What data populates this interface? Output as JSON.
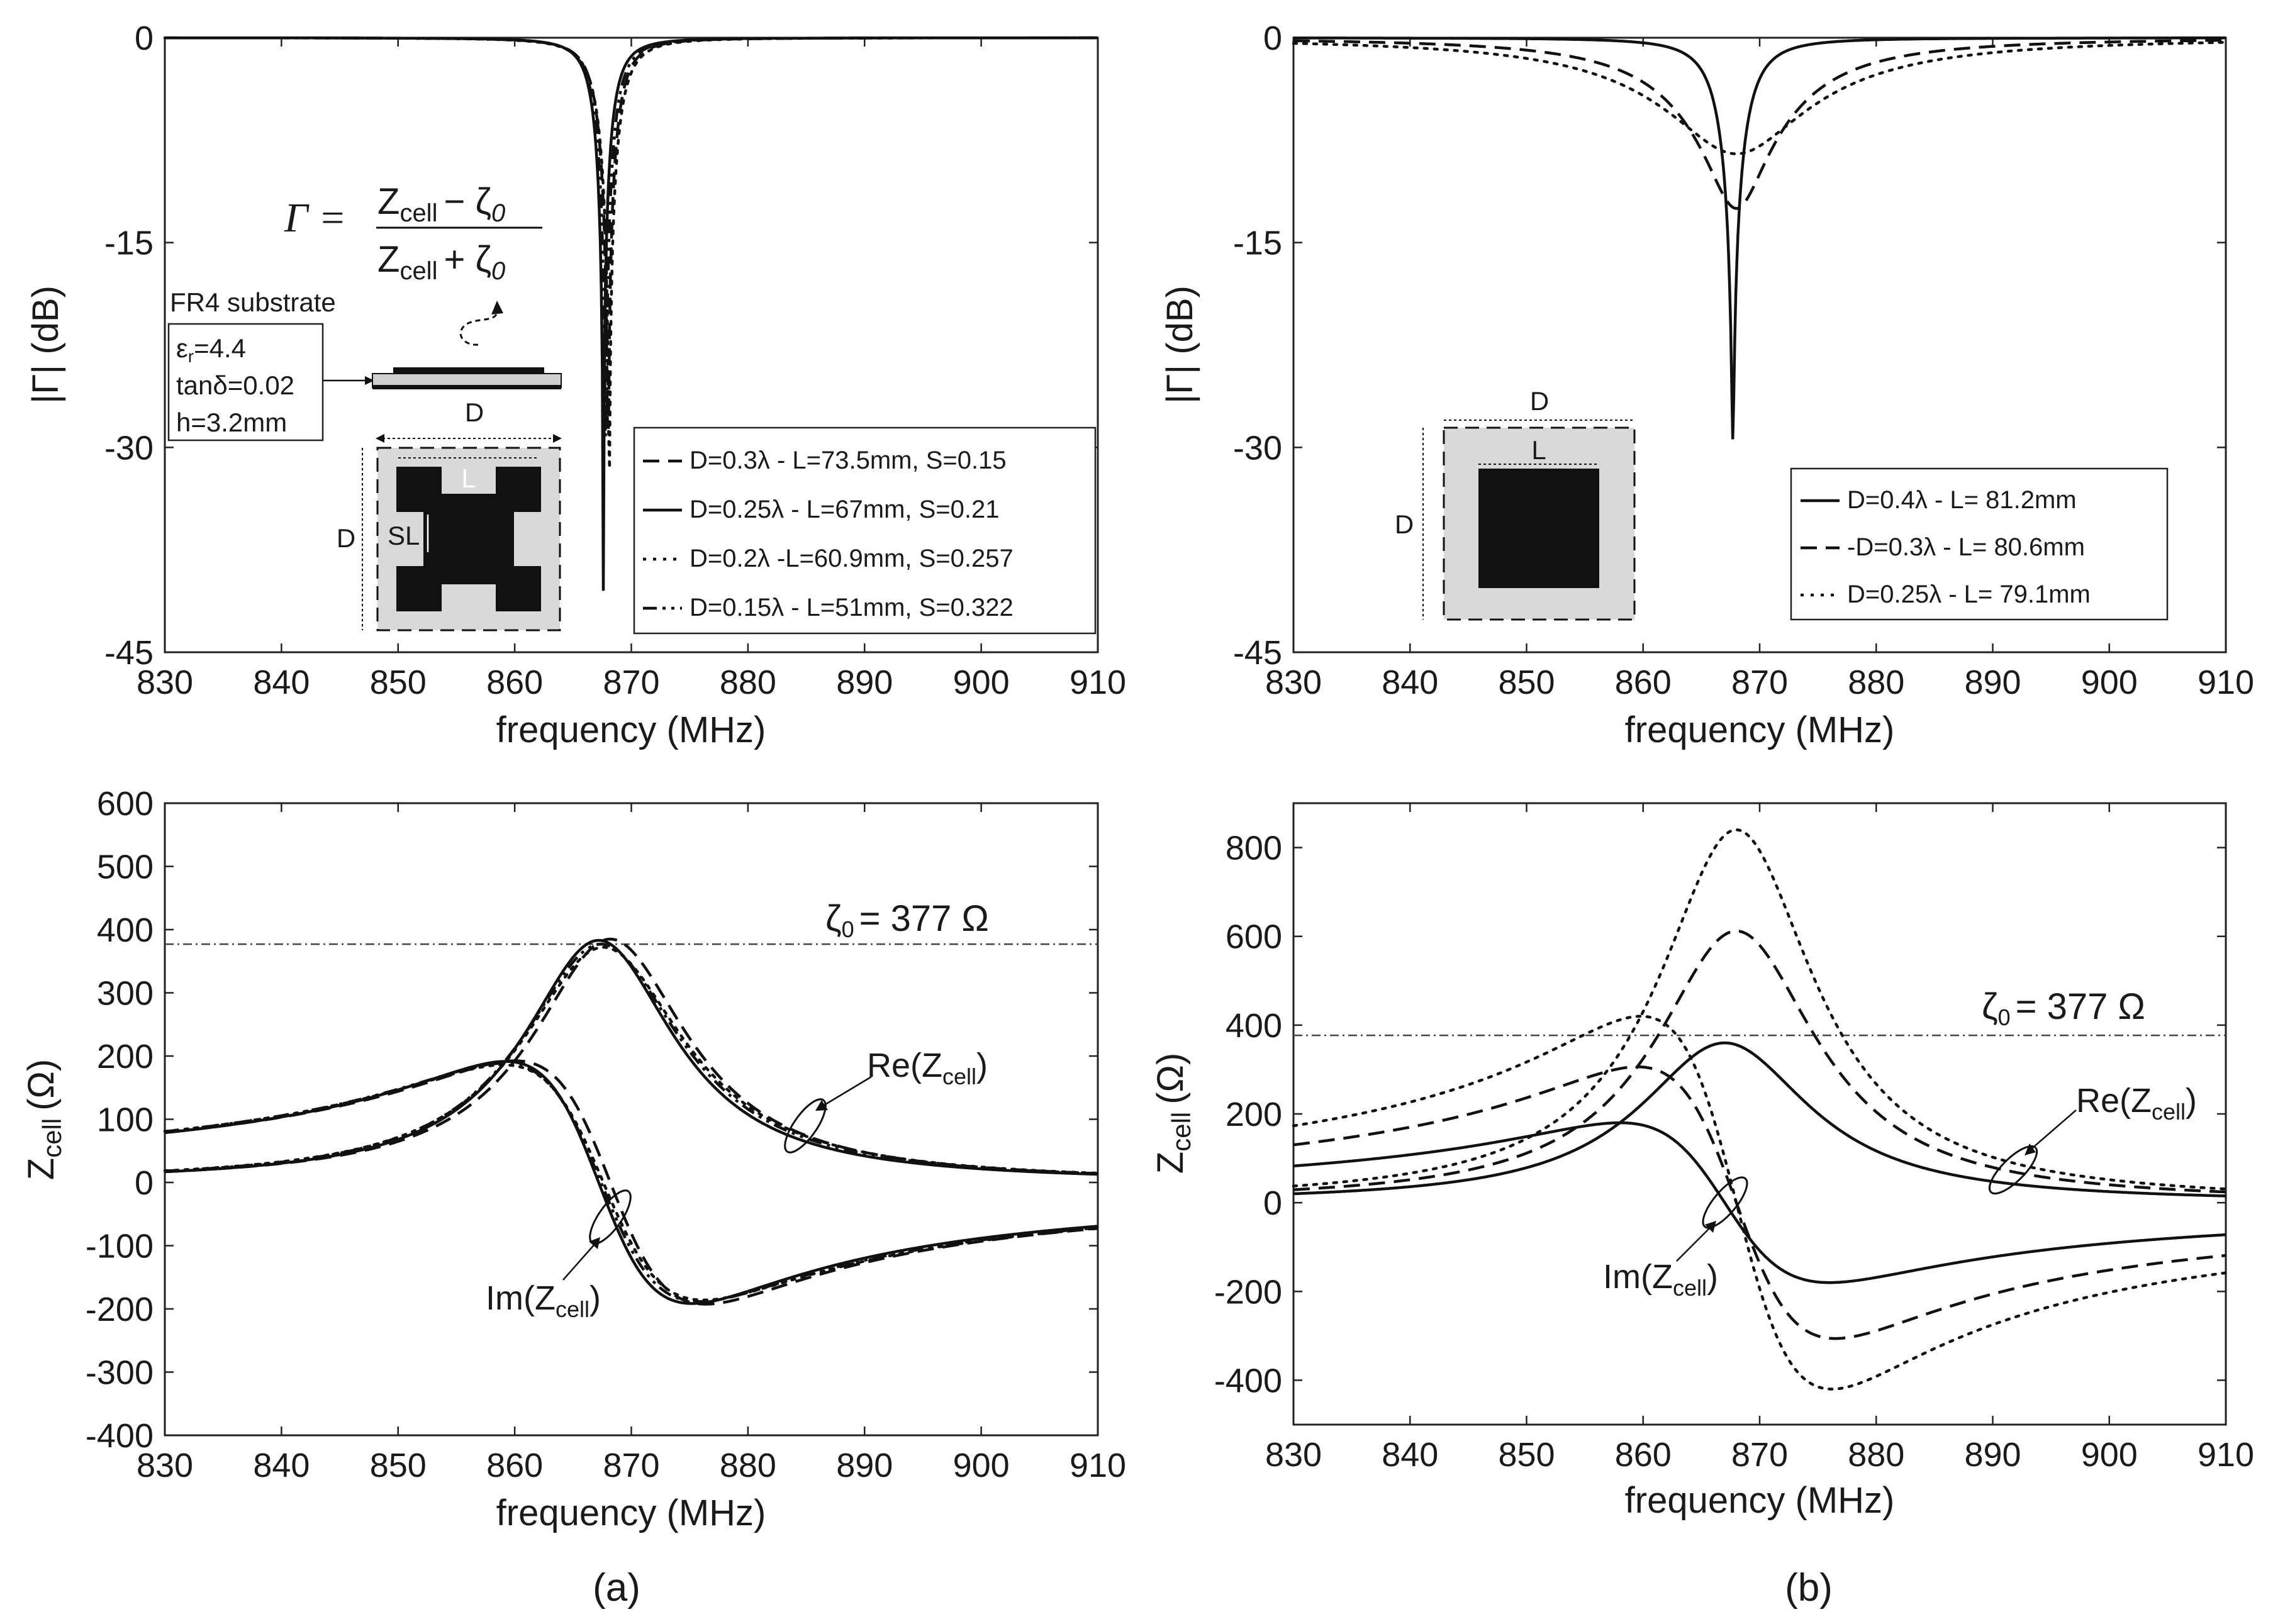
{
  "chart_data": [
    {
      "id": "a-top",
      "type": "line",
      "xlabel": "frequency (MHz)",
      "ylabel": "|Γ| (dB)",
      "xlim": [
        830,
        910
      ],
      "ylim": [
        -45,
        0
      ],
      "xticks": [
        "830",
        "840",
        "850",
        "860",
        "870",
        "880",
        "890",
        "900",
        "910"
      ],
      "yticks": [
        "0",
        "-15",
        "-30",
        "-45"
      ],
      "legend_position": "bottom-right",
      "series": [
        {
          "name": "D=0.3λ - L=73.5mm, S=0.15",
          "style": "dashed",
          "model": "resonance",
          "f0": 868.0,
          "depth_db": -32.0,
          "width": 1.6
        },
        {
          "name": "D=0.25λ - L=67mm, S=0.21",
          "style": "solid",
          "model": "resonance",
          "f0": 867.6,
          "depth_db": -40.5,
          "width": 1.45
        },
        {
          "name": "D=0.2λ -L=60.9mm, S=0.257",
          "style": "dotted",
          "model": "resonance",
          "f0": 868.1,
          "depth_db": -35.0,
          "width": 1.7
        },
        {
          "name": "D=0.15λ - L=51mm, S=0.322",
          "style": "dashdotdot",
          "model": "resonance",
          "f0": 867.8,
          "depth_db": -30.0,
          "width": 1.55
        }
      ],
      "annotations": {
        "formula_gamma": "Γ =",
        "formula_num": "Z",
        "formula_num_sub": "cell",
        "formula_num_rest": "− ζ",
        "formula_num_rest_sub": "0",
        "formula_den": "Z",
        "formula_den_sub": "cell",
        "formula_den_rest": "+ ζ",
        "formula_den_rest_sub": "0",
        "substrate_title": "FR4 substrate",
        "eps_symbol": "ε",
        "eps_sub": "r",
        "eps_value": "=4.4",
        "tan_delta": "tanδ=0.02",
        "height": "h=3.2mm",
        "dim_D_top": "D",
        "dim_D_side": "D",
        "dim_L": "L",
        "dim_SL": "SL"
      }
    },
    {
      "id": "b-top",
      "type": "line",
      "xlabel": "frequency (MHz)",
      "ylabel": "|Γ| (dB)",
      "xlim": [
        830,
        910
      ],
      "ylim": [
        -45,
        0
      ],
      "xticks": [
        "830",
        "840",
        "850",
        "860",
        "870",
        "880",
        "890",
        "900",
        "910"
      ],
      "yticks": [
        "0",
        "-15",
        "-30",
        "-45"
      ],
      "legend_position": "bottom-right",
      "series": [
        {
          "name": "D=0.4λ - L= 81.2mm",
          "style": "solid",
          "model": "resonance",
          "f0": 867.7,
          "depth_db": -29.5,
          "width": 2.3
        },
        {
          "name": "-D=0.3λ - L= 80.6mm",
          "style": "dashed",
          "model": "resonance",
          "f0": 868.0,
          "depth_db": -12.5,
          "width": 9.0
        },
        {
          "name": "D=0.25λ - L= 79.1mm",
          "style": "dotted",
          "model": "resonance",
          "f0": 868.0,
          "depth_db": -8.5,
          "width": 13.0
        }
      ],
      "annotations": {
        "dim_D_top": "D",
        "dim_D_side": "D",
        "dim_L": "L"
      }
    },
    {
      "id": "a-bottom",
      "type": "line",
      "xlabel": "frequency (MHz)",
      "ylabel": "Z",
      "ylabel_sub": "cell",
      "ylabel_unit": "(Ω)",
      "xlim": [
        830,
        910
      ],
      "ylim": [
        -400,
        600
      ],
      "xticks": [
        "830",
        "840",
        "850",
        "860",
        "870",
        "880",
        "890",
        "900",
        "910"
      ],
      "yticks": [
        "600",
        "500",
        "400",
        "300",
        "200",
        "100",
        "0",
        "-100",
        "-200",
        "-300",
        "-400"
      ],
      "reference_line": {
        "value": 377,
        "label": "ζ",
        "label_sub": "0",
        "label_rest": "= 377 Ω"
      },
      "series": [
        {
          "name": "Re, D=0.3λ",
          "style": "dashed",
          "model": "re",
          "f0": 868.2,
          "gamma": 8.2,
          "peak": 385
        },
        {
          "name": "Re, D=0.25λ",
          "style": "solid",
          "model": "re",
          "f0": 867.2,
          "gamma": 8.0,
          "peak": 383
        },
        {
          "name": "Re, D=0.2λ",
          "style": "dotted",
          "model": "re",
          "f0": 867.6,
          "gamma": 8.6,
          "peak": 372
        },
        {
          "name": "Re, D=0.15λ",
          "style": "dashdotdot",
          "model": "re",
          "f0": 867.4,
          "gamma": 8.4,
          "peak": 377
        },
        {
          "name": "Im, D=0.3λ",
          "style": "dashed",
          "model": "im",
          "f0": 868.2,
          "gamma": 8.2,
          "peak": 385
        },
        {
          "name": "Im, D=0.25λ",
          "style": "solid",
          "model": "im",
          "f0": 867.2,
          "gamma": 8.0,
          "peak": 383
        },
        {
          "name": "Im, D=0.2λ",
          "style": "dotted",
          "model": "im",
          "f0": 867.6,
          "gamma": 8.6,
          "peak": 372
        },
        {
          "name": "Im, D=0.15λ",
          "style": "dashdotdot",
          "model": "im",
          "f0": 867.4,
          "gamma": 8.4,
          "peak": 377
        }
      ],
      "annotations": {
        "re_label": "Re(Z",
        "re_sub": "cell",
        "re_close": ")",
        "im_label": "Im(Z",
        "im_sub": "cell",
        "im_close": ")"
      }
    },
    {
      "id": "b-bottom",
      "type": "line",
      "xlabel": "frequency (MHz)",
      "ylabel": "Z",
      "ylabel_sub": "cell",
      "ylabel_unit": "(Ω)",
      "xlim": [
        830,
        910
      ],
      "ylim": [
        -500,
        900
      ],
      "xticks": [
        "830",
        "840",
        "850",
        "860",
        "870",
        "880",
        "890",
        "900",
        "910"
      ],
      "yticks": [
        "800",
        "600",
        "400",
        "200",
        "0",
        "-200",
        "-400"
      ],
      "reference_line": {
        "value": 377,
        "label": "ζ",
        "label_sub": "0",
        "label_rest": "= 377 Ω"
      },
      "series": [
        {
          "name": "Re, D=0.4λ",
          "style": "solid",
          "model": "re",
          "f0": 867.0,
          "gamma": 9.0,
          "peak": 360
        },
        {
          "name": "Re, D=0.3λ",
          "style": "dashed",
          "model": "re",
          "f0": 868.0,
          "gamma": 8.5,
          "peak": 612
        },
        {
          "name": "Re, D=0.25λ",
          "style": "dotted",
          "model": "re",
          "f0": 868.0,
          "gamma": 8.2,
          "peak": 840
        },
        {
          "name": "Im, D=0.4λ",
          "style": "solid",
          "model": "im",
          "f0": 867.0,
          "gamma": 9.0,
          "peak": 360
        },
        {
          "name": "Im, D=0.3λ",
          "style": "dashed",
          "model": "im",
          "f0": 868.0,
          "gamma": 8.5,
          "peak": 612
        },
        {
          "name": "Im, D=0.25λ",
          "style": "dotted",
          "model": "im",
          "f0": 868.0,
          "gamma": 8.2,
          "peak": 840
        }
      ],
      "annotations": {
        "re_label": "Re(Z",
        "re_sub": "cell",
        "re_close": ")",
        "im_label": "Im(Z",
        "im_sub": "cell",
        "im_close": ")"
      }
    }
  ],
  "panel_labels": {
    "a": "(a)",
    "b": "(b)"
  },
  "colors": {
    "ink": "#111111",
    "inset_fill": "#d9d9d9",
    "patch": "#111111"
  }
}
